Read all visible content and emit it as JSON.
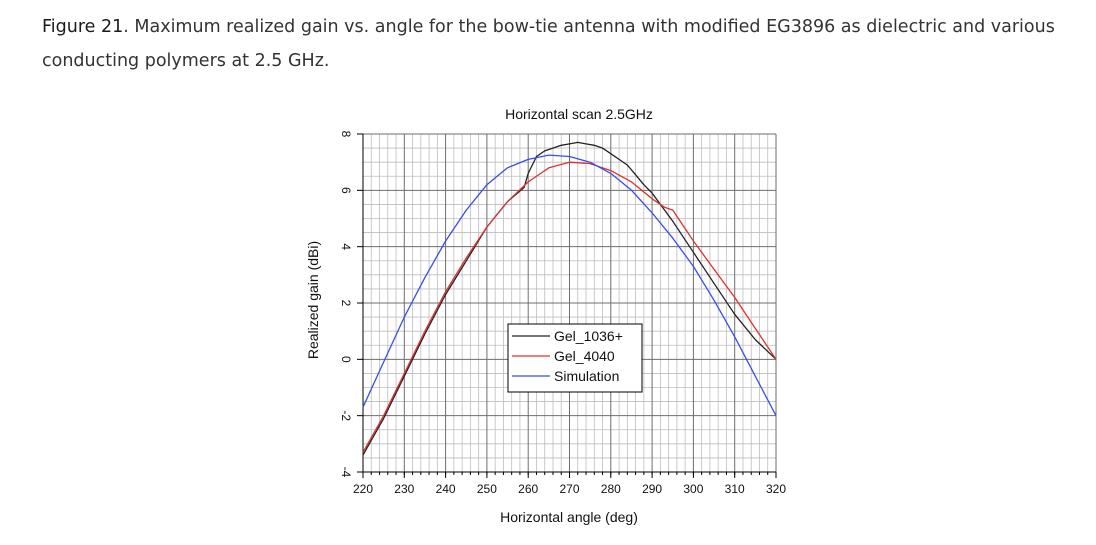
{
  "caption": {
    "label": "Figure 21",
    "text": ". Maximum realized gain vs. angle for the bow-tie antenna with modified EG3896 as dielectric and various conducting polymers at 2.5 GHz."
  },
  "chart_data": {
    "type": "line",
    "title": "Horizontal scan 2.5GHz",
    "xlabel": "Horizontal angle (deg)",
    "ylabel": "Realized gain (dBi)",
    "xlim": [
      220,
      320
    ],
    "ylim": [
      -4,
      8
    ],
    "xticks": [
      220,
      230,
      240,
      250,
      260,
      270,
      280,
      290,
      300,
      310,
      320
    ],
    "yticks": [
      -4,
      -2,
      0,
      2,
      4,
      6,
      8
    ],
    "grid": true,
    "legend_position": "center",
    "series": [
      {
        "name": "Gel_1036+",
        "color": "#222222",
        "x": [
          220,
          225,
          230,
          235,
          240,
          245,
          250,
          255,
          259,
          260,
          262,
          264,
          266,
          268,
          270,
          272,
          274,
          276,
          278,
          280,
          282,
          284,
          286,
          288,
          290,
          295,
          300,
          305,
          310,
          315,
          320
        ],
        "y": [
          -3.4,
          -2.1,
          -0.6,
          0.9,
          2.3,
          3.5,
          4.7,
          5.6,
          6.1,
          6.6,
          7.2,
          7.4,
          7.5,
          7.6,
          7.65,
          7.7,
          7.65,
          7.6,
          7.5,
          7.3,
          7.1,
          6.9,
          6.55,
          6.2,
          5.9,
          4.9,
          3.8,
          2.7,
          1.6,
          0.7,
          0.0
        ]
      },
      {
        "name": "Gel_4040",
        "color": "#e03030",
        "x": [
          220,
          225,
          230,
          235,
          240,
          245,
          250,
          255,
          260,
          265,
          270,
          275,
          280,
          285,
          290,
          293,
          295,
          300,
          305,
          310,
          315,
          320
        ],
        "y": [
          -3.3,
          -2.0,
          -0.5,
          1.0,
          2.4,
          3.6,
          4.7,
          5.6,
          6.3,
          6.8,
          7.0,
          6.95,
          6.7,
          6.3,
          5.7,
          5.4,
          5.3,
          4.2,
          3.2,
          2.2,
          1.1,
          0.0
        ]
      },
      {
        "name": "Simulation",
        "color": "#3a4cf0",
        "x": [
          220,
          225,
          230,
          235,
          240,
          245,
          250,
          255,
          260,
          265,
          270,
          275,
          280,
          285,
          290,
          295,
          300,
          305,
          310,
          315,
          320
        ],
        "y": [
          -1.7,
          -0.1,
          1.5,
          2.9,
          4.2,
          5.3,
          6.2,
          6.8,
          7.1,
          7.25,
          7.2,
          7.0,
          6.6,
          6.0,
          5.2,
          4.3,
          3.3,
          2.1,
          0.8,
          -0.6,
          -2.0
        ]
      }
    ]
  }
}
